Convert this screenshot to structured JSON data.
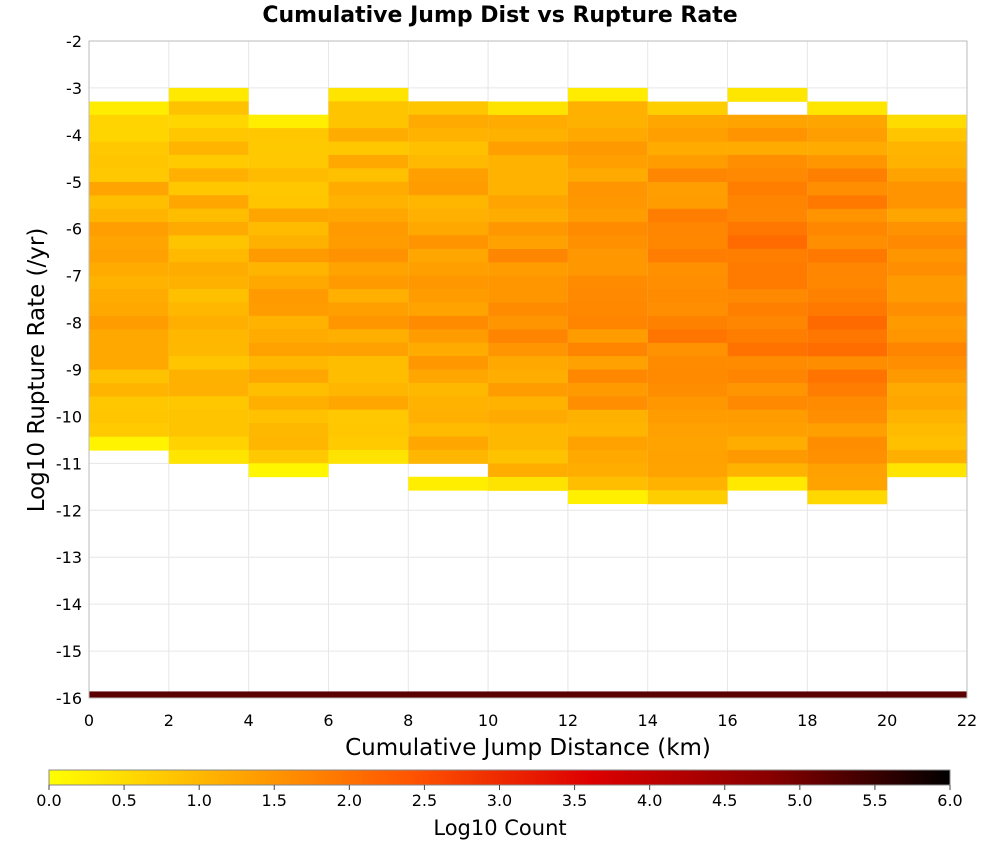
{
  "chart_data": {
    "type": "heatmap",
    "title": "Cumulative Jump Dist vs Rupture Rate",
    "xlabel": "Cumulative Jump Distance (km)",
    "ylabel": "Log10 Rupture Rate (/yr)",
    "xlim": [
      0,
      22
    ],
    "ylim": [
      -16,
      -2
    ],
    "x_ticks": [
      "0",
      "2",
      "4",
      "6",
      "8",
      "10",
      "12",
      "14",
      "16",
      "18",
      "20",
      "22"
    ],
    "y_ticks": [
      "-2",
      "-3",
      "-4",
      "-5",
      "-6",
      "-7",
      "-8",
      "-9",
      "-10",
      "-11",
      "-12",
      "-13",
      "-14",
      "-15",
      "-16"
    ],
    "x_bin_width": 2,
    "y_bin_height": 0.2857,
    "grid": true,
    "colorbar": {
      "label": "Log10 Count",
      "min": 0.0,
      "max": 6.0,
      "ticks": [
        "0.0",
        "0.5",
        "1.0",
        "1.5",
        "2.0",
        "2.5",
        "3.0",
        "3.5",
        "4.0",
        "4.5",
        "5.0",
        "5.5",
        "6.0"
      ],
      "colors": [
        "#ffff00",
        "#ffaa00",
        "#ff5500",
        "#dd0000",
        "#880000",
        "#000000"
      ]
    },
    "columns": [
      {
        "x_range": [
          0,
          2
        ],
        "y_top": -3.29,
        "y_bottom": -10.71,
        "mean_log10_count": 1.2,
        "min_log10_count": 0.1
      },
      {
        "x_range": [
          2,
          4
        ],
        "y_top": -3.0,
        "y_bottom": -11.0,
        "mean_log10_count": 1.1,
        "min_log10_count": 0.2
      },
      {
        "x_range": [
          4,
          6
        ],
        "y_top": -3.57,
        "y_bottom": -11.29,
        "mean_log10_count": 1.2,
        "min_log10_count": 0.1
      },
      {
        "x_range": [
          6,
          8
        ],
        "y_top": -3.0,
        "y_bottom": -11.0,
        "mean_log10_count": 1.3,
        "min_log10_count": 0.2
      },
      {
        "x_range": [
          8,
          10
        ],
        "y_top": -3.0,
        "y_bottom": -11.57,
        "mean_log10_count": 1.4,
        "min_log10_count": 0.2,
        "gaps": [
          [
            -3.29,
            -3.0
          ],
          [
            -11.29,
            -11.0
          ]
        ]
      },
      {
        "x_range": [
          10,
          12
        ],
        "y_top": -3.29,
        "y_bottom": -11.57,
        "mean_log10_count": 1.5,
        "min_log10_count": 0.3
      },
      {
        "x_range": [
          12,
          14
        ],
        "y_top": -3.0,
        "y_bottom": -11.86,
        "mean_log10_count": 1.6,
        "min_log10_count": 0.1
      },
      {
        "x_range": [
          14,
          16
        ],
        "y_top": -3.29,
        "y_bottom": -11.86,
        "mean_log10_count": 1.8,
        "min_log10_count": 0.4
      },
      {
        "x_range": [
          16,
          18
        ],
        "y_top": -3.0,
        "y_bottom": -11.57,
        "mean_log10_count": 1.9,
        "min_log10_count": 0.1,
        "gaps": [
          [
            -3.57,
            -3.29
          ]
        ]
      },
      {
        "x_range": [
          18,
          20
        ],
        "y_top": -3.29,
        "y_bottom": -11.86,
        "mean_log10_count": 1.9,
        "min_log10_count": 0.3
      },
      {
        "x_range": [
          20,
          22
        ],
        "y_top": -3.57,
        "y_bottom": -11.29,
        "mean_log10_count": 1.6,
        "min_log10_count": 0.2
      }
    ],
    "bottom_band": {
      "y_range": [
        -16.0,
        -15.86
      ],
      "log10_count": 5.2
    }
  }
}
